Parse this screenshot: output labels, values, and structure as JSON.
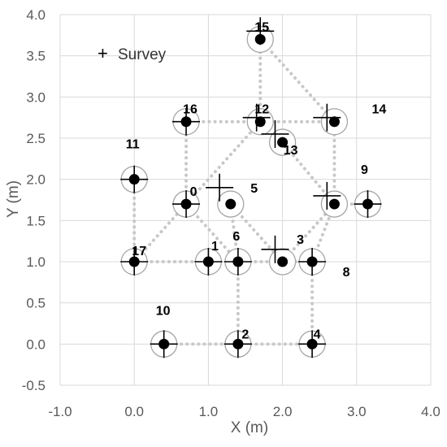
{
  "chart_data": {
    "type": "scatter",
    "xlabel": "X (m)",
    "ylabel": "Y (m)",
    "xlim": [
      -1.0,
      4.0
    ],
    "ylim": [
      -0.5,
      4.0
    ],
    "x_ticks": [
      "-1.0",
      "0.0",
      "1.0",
      "2.0",
      "3.0",
      "4.0"
    ],
    "y_ticks": [
      "-0.5",
      "0.0",
      "0.5",
      "1.0",
      "1.5",
      "2.0",
      "2.5",
      "3.0",
      "3.5",
      "4.0"
    ],
    "grid": true,
    "legend": {
      "position": "top-left",
      "entries": [
        {
          "symbol": "+",
          "label": "Survey"
        }
      ]
    },
    "nodes": [
      {
        "id": "0",
        "x": 0.7,
        "y": 1.7
      },
      {
        "id": "1",
        "x": 1.0,
        "y": 1.0
      },
      {
        "id": "2",
        "x": 1.4,
        "y": 0.0
      },
      {
        "id": "3",
        "x": 2.0,
        "y": 1.0
      },
      {
        "id": "4",
        "x": 2.4,
        "y": 0.0
      },
      {
        "id": "5",
        "x": 1.3,
        "y": 1.7
      },
      {
        "id": "6",
        "x": 1.4,
        "y": 1.0
      },
      {
        "id": "8",
        "x": 2.4,
        "y": 1.0
      },
      {
        "id": "9",
        "x": 3.15,
        "y": 1.7
      },
      {
        "id": "10",
        "x": 0.4,
        "y": 0.0
      },
      {
        "id": "11",
        "x": 0.0,
        "y": 2.0
      },
      {
        "id": "12",
        "x": 1.7,
        "y": 2.7
      },
      {
        "id": "13",
        "x": 2.0,
        "y": 2.45
      },
      {
        "id": "14",
        "x": 2.7,
        "y": 2.7
      },
      {
        "id": "15",
        "x": 1.7,
        "y": 3.7
      },
      {
        "id": "16",
        "x": 0.7,
        "y": 2.7
      },
      {
        "id": "17",
        "x": 0.0,
        "y": 1.0
      },
      {
        "id": "",
        "x": 2.7,
        "y": 1.7
      }
    ],
    "survey_points": [
      {
        "x": 0.7,
        "y": 1.7
      },
      {
        "x": 1.0,
        "y": 1.0
      },
      {
        "x": 1.4,
        "y": 0.0
      },
      {
        "x": 1.9,
        "y": 1.15
      },
      {
        "x": 2.4,
        "y": 0.0
      },
      {
        "x": 1.15,
        "y": 1.9
      },
      {
        "x": 1.4,
        "y": 1.0
      },
      {
        "x": 2.4,
        "y": 1.0
      },
      {
        "x": 3.15,
        "y": 1.7
      },
      {
        "x": 0.4,
        "y": 0.0
      },
      {
        "x": 0.0,
        "y": 2.0
      },
      {
        "x": 1.65,
        "y": 2.75
      },
      {
        "x": 1.9,
        "y": 2.55
      },
      {
        "x": 2.6,
        "y": 2.75
      },
      {
        "x": 1.7,
        "y": 3.8
      },
      {
        "x": 0.7,
        "y": 2.7
      },
      {
        "x": 0.0,
        "y": 1.0
      },
      {
        "x": 2.6,
        "y": 1.8
      }
    ],
    "connections": [
      [
        [
          0.0,
          1.0
        ],
        [
          2.4,
          1.0
        ]
      ],
      [
        [
          0.0,
          1.0
        ],
        [
          0.0,
          2.0
        ]
      ],
      [
        [
          0.0,
          1.0
        ],
        [
          1.7,
          2.7
        ]
      ],
      [
        [
          0.7,
          1.7
        ],
        [
          1.4,
          1.0
        ]
      ],
      [
        [
          0.7,
          1.7
        ],
        [
          0.7,
          2.7
        ]
      ],
      [
        [
          0.7,
          2.7
        ],
        [
          2.7,
          2.7
        ]
      ],
      [
        [
          1.3,
          1.7
        ],
        [
          1.4,
          1.0
        ]
      ],
      [
        [
          1.3,
          1.7
        ],
        [
          2.0,
          1.0
        ]
      ],
      [
        [
          1.4,
          1.0
        ],
        [
          1.4,
          0.0
        ]
      ],
      [
        [
          0.4,
          0.0
        ],
        [
          2.4,
          0.0
        ]
      ],
      [
        [
          2.4,
          0.0
        ],
        [
          2.4,
          1.0
        ]
      ],
      [
        [
          2.4,
          1.0
        ],
        [
          2.7,
          1.7
        ]
      ],
      [
        [
          2.0,
          1.0
        ],
        [
          2.7,
          1.7
        ]
      ],
      [
        [
          2.7,
          1.7
        ],
        [
          3.15,
          1.7
        ]
      ],
      [
        [
          2.7,
          1.7
        ],
        [
          2.0,
          2.45
        ]
      ],
      [
        [
          2.7,
          1.7
        ],
        [
          2.7,
          2.7
        ]
      ],
      [
        [
          1.7,
          2.7
        ],
        [
          1.7,
          3.7
        ]
      ],
      [
        [
          1.7,
          3.7
        ],
        [
          2.7,
          2.7
        ]
      ]
    ]
  }
}
